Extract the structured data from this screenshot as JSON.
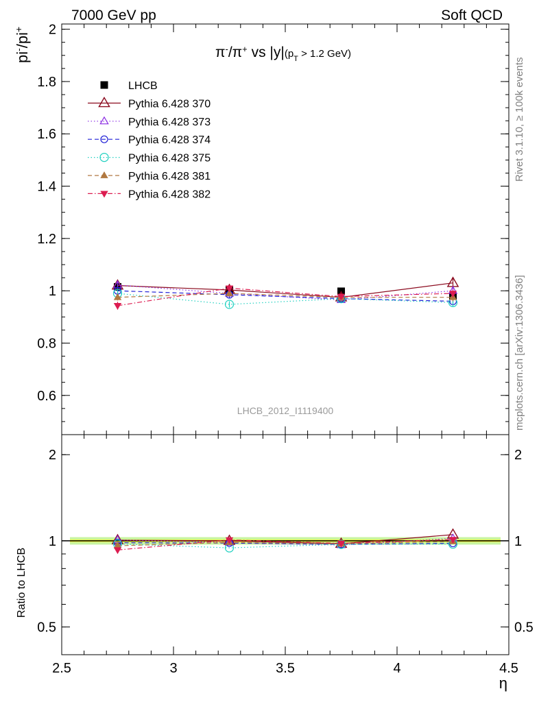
{
  "header": {
    "left": "7000 GeV pp",
    "right": "Soft QCD"
  },
  "side_text": {
    "rivet": "Rivet 3.1.10, ≥ 100k events",
    "mcplots": "mcplots.cern.ch [arXiv:1306.3436]"
  },
  "analysis_id": "LHCB_2012_I1119400",
  "chart_data": [
    {
      "type": "line",
      "title": "π⁻/π⁺ vs |y|",
      "title_cut": "(p_T > 1.2 GeV)",
      "ylabel": "pi-/pi+",
      "xlim": [
        2.5,
        4.5
      ],
      "ylim": [
        0.45,
        2.02
      ],
      "yticks": [
        0.6,
        0.8,
        1,
        1.2,
        1.4,
        1.6,
        1.8,
        2
      ],
      "ytick_labels": [
        "0.6",
        "0.8",
        "1",
        "1.2",
        "1.4",
        "1.6",
        "1.8",
        "2"
      ],
      "legend_position": "top-left",
      "x": [
        2.75,
        3.25,
        3.75,
        4.25
      ],
      "series": [
        {
          "name": "LHCB",
          "values": [
            1.015,
            1.003,
            0.998,
            0.98
          ],
          "errors": [
            0.01,
            0.01,
            0.01,
            0.01
          ],
          "color": "#000000",
          "marker": "square-filled",
          "line": "none"
        },
        {
          "name": "Pythia 6.428 370",
          "values": [
            1.02,
            1.003,
            0.975,
            1.03
          ],
          "errors": [
            0.015,
            0.012,
            0.012,
            0.02
          ],
          "color": "#8b0a1e",
          "marker": "triangle-open-large",
          "line": "solid"
        },
        {
          "name": "Pythia 6.428 373",
          "values": [
            1.022,
            0.99,
            0.965,
            1.0
          ],
          "errors": [
            0.012,
            0.012,
            0.012,
            0.015
          ],
          "color": "#8a2be2",
          "marker": "triangle-open",
          "line": "dotted"
        },
        {
          "name": "Pythia 6.428 374",
          "values": [
            1.0,
            0.985,
            0.97,
            0.96
          ],
          "errors": [
            0.012,
            0.012,
            0.012,
            0.015
          ],
          "color": "#1f1fd6",
          "marker": "circle-open",
          "line": "dashed"
        },
        {
          "name": "Pythia 6.428 375",
          "values": [
            0.99,
            0.948,
            0.97,
            0.955
          ],
          "errors": [
            0.012,
            0.012,
            0.012,
            0.015
          ],
          "color": "#20d0c0",
          "marker": "circle-open-large",
          "line": "dotted"
        },
        {
          "name": "Pythia 6.428 381",
          "values": [
            0.975,
            0.99,
            0.975,
            0.975
          ],
          "errors": [
            0.012,
            0.012,
            0.012,
            0.015
          ],
          "color": "#b07840",
          "marker": "triangle-filled",
          "line": "dashed"
        },
        {
          "name": "Pythia 6.428 382",
          "values": [
            0.943,
            1.01,
            0.978,
            0.99
          ],
          "errors": [
            0.015,
            0.012,
            0.012,
            0.015
          ],
          "color": "#dc1c50",
          "marker": "triangle-down-filled",
          "line": "dashdot"
        }
      ]
    },
    {
      "type": "line",
      "ylabel": "Ratio to LHCB",
      "xlabel": "η",
      "xlim": [
        2.5,
        4.5
      ],
      "xticks": [
        2.5,
        3,
        3.5,
        4,
        4.5
      ],
      "xtick_labels": [
        "2.5",
        "3",
        "3.5",
        "4",
        "4.5"
      ],
      "ylim": [
        0.4,
        2.35
      ],
      "yscale": "log",
      "yticks": [
        0.5,
        1,
        2
      ],
      "ytick_labels": [
        "0.5",
        "1",
        "2"
      ],
      "band": {
        "inner": 0.01,
        "outer": 0.03,
        "inner_color": "#f2f23a",
        "outer_color": "#c8f5a0"
      },
      "x": [
        2.75,
        3.25,
        3.75,
        4.25
      ],
      "series": [
        {
          "name": "Pythia 6.428 370",
          "values": [
            1.005,
            1.0,
            0.977,
            1.051
          ]
        },
        {
          "name": "Pythia 6.428 373",
          "values": [
            1.007,
            0.987,
            0.967,
            1.02
          ]
        },
        {
          "name": "Pythia 6.428 374",
          "values": [
            0.985,
            0.982,
            0.972,
            0.98
          ]
        },
        {
          "name": "Pythia 6.428 375",
          "values": [
            0.975,
            0.945,
            0.972,
            0.974
          ]
        },
        {
          "name": "Pythia 6.428 381",
          "values": [
            0.961,
            0.987,
            0.977,
            0.995
          ]
        },
        {
          "name": "Pythia 6.428 382",
          "values": [
            0.929,
            1.007,
            0.98,
            1.01
          ]
        }
      ]
    }
  ]
}
